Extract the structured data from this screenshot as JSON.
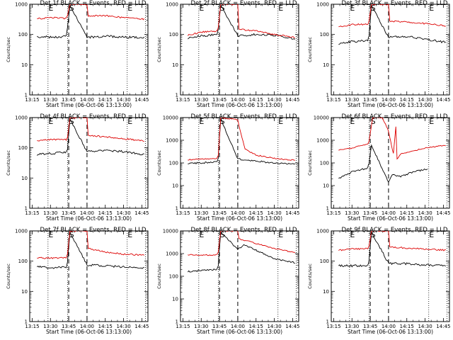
{
  "chart_data": {
    "type": "line",
    "x_ticks": [
      "13:15",
      "13:30",
      "13:45",
      "14:00",
      "14:15",
      "14:30",
      "14:45"
    ],
    "xlim": [
      "13:13",
      "14:50"
    ],
    "ylabel": "Counts/sec",
    "yscale": "log",
    "colors": {
      "events": "#000000",
      "lld": "#dd0000"
    },
    "marker_lines": {
      "dotted": [
        "13:28",
        "13:44",
        "14:33",
        "14:48"
      ],
      "dashed": [
        "13:45",
        "14:00"
      ]
    },
    "panels": [
      {
        "title": "Det 1f BLACK = Events, RED = LLD",
        "xlabel": "Start Time (06-Oct-06 13:13:00)",
        "ylim": [
          1,
          1000
        ],
        "y_ticks": [
          "1",
          "10",
          "100",
          "1000"
        ],
        "markers": [
          "E",
          "S",
          "E"
        ],
        "series": [
          {
            "name": "Events",
            "x": [
              "13:19",
              "13:30",
              "13:43",
              "13:44",
              "13:46",
              "14:00",
              "14:15",
              "14:30",
              "14:47"
            ],
            "values": [
              85,
              82,
              86,
              160,
              900,
              80,
              88,
              82,
              78
            ]
          },
          {
            "name": "LLD",
            "x": [
              "13:19",
              "13:30",
              "13:43",
              "13:44",
              "13:46",
              "14:00",
              "14:01",
              "14:15",
              "14:30",
              "14:47"
            ],
            "values": [
              330,
              360,
              340,
              420,
              1000,
              1000,
              420,
              420,
              360,
              320
            ]
          }
        ]
      },
      {
        "title": "Det 2f BLACK = Events, RED = LLD",
        "xlabel": "Start Time (06-Oct-06 13:13:00)",
        "ylim": [
          1,
          1000
        ],
        "y_ticks": [
          "1",
          "10",
          "100",
          "1000"
        ],
        "markers": [
          "E",
          "S",
          "E"
        ],
        "series": [
          {
            "name": "Events",
            "x": [
              "13:19",
              "13:30",
              "13:43",
              "13:44",
              "13:46",
              "14:00",
              "14:15",
              "14:30",
              "14:47"
            ],
            "values": [
              75,
              90,
              100,
              150,
              900,
              90,
              100,
              95,
              72
            ]
          },
          {
            "name": "LLD",
            "x": [
              "13:19",
              "13:30",
              "13:43",
              "13:44",
              "13:46",
              "14:00",
              "14:01",
              "14:15",
              "14:30",
              "14:47"
            ],
            "values": [
              95,
              120,
              130,
              170,
              1000,
              1000,
              150,
              130,
              100,
              80
            ]
          }
        ]
      },
      {
        "title": "Det 3f BLACK = Events, RED = LLD",
        "xlabel": "Start Time (06-Oct-06 13:13:00)",
        "ylim": [
          1,
          1000
        ],
        "y_ticks": [
          "1",
          "10",
          "100",
          "1000"
        ],
        "markers": [
          "E",
          "S",
          "E"
        ],
        "series": [
          {
            "name": "Events",
            "x": [
              "13:19",
              "13:30",
              "13:43",
              "13:44",
              "13:46",
              "14:00",
              "14:15",
              "14:30",
              "14:47"
            ],
            "values": [
              50,
              58,
              62,
              90,
              900,
              80,
              85,
              70,
              55
            ]
          },
          {
            "name": "LLD",
            "x": [
              "13:19",
              "13:30",
              "13:43",
              "13:44",
              "13:46",
              "14:00",
              "14:01",
              "14:15",
              "14:30",
              "14:47"
            ],
            "values": [
              180,
              210,
              220,
              280,
              1000,
              1000,
              280,
              260,
              230,
              190
            ]
          }
        ]
      },
      {
        "title": "Det 4f BLACK = Events, RED = LLD",
        "xlabel": "Start Time (06-Oct-06 13:13:00)",
        "ylim": [
          1,
          1000
        ],
        "y_ticks": [
          "1",
          "10",
          "100",
          "1000"
        ],
        "markers": [
          "E",
          "S",
          "E"
        ],
        "series": [
          {
            "name": "Events",
            "x": [
              "13:19",
              "13:30",
              "13:43",
              "13:44",
              "13:46",
              "14:00",
              "14:15",
              "14:30",
              "14:47"
            ],
            "values": [
              60,
              65,
              70,
              90,
              900,
              75,
              80,
              75,
              60
            ]
          },
          {
            "name": "LLD",
            "x": [
              "13:19",
              "13:30",
              "13:43",
              "13:44",
              "13:46",
              "14:00",
              "14:01",
              "14:15",
              "14:30",
              "14:47"
            ],
            "values": [
              170,
              190,
              185,
              220,
              1000,
              1000,
              260,
              230,
              200,
              170
            ]
          }
        ]
      },
      {
        "title": "Det 5f BLACK = Events, RED = LLD",
        "xlabel": "Start Time (06-Oct-06 13:13:00)",
        "ylim": [
          1,
          10000
        ],
        "y_ticks": [
          "1",
          "10",
          "100",
          "1000",
          "10000"
        ],
        "markers": [
          "E",
          "S",
          "E"
        ],
        "series": [
          {
            "name": "Events",
            "x": [
              "13:19",
              "13:30",
              "13:43",
              "13:44",
              "13:46",
              "14:00",
              "14:15",
              "14:30",
              "14:47"
            ],
            "values": [
              95,
              100,
              110,
              160,
              9000,
              150,
              120,
              100,
              90
            ]
          },
          {
            "name": "LLD",
            "x": [
              "13:19",
              "13:30",
              "13:43",
              "13:44",
              "13:46",
              "14:00",
              "14:01",
              "14:06",
              "14:15",
              "14:30",
              "14:47"
            ],
            "values": [
              140,
              150,
              160,
              220,
              10000,
              8000,
              4500,
              400,
              220,
              160,
              130
            ]
          }
        ]
      },
      {
        "title": "Det 6f BLACK = Events, RED = LLD",
        "xlabel": "Start Time (06-Oct-06 13:13:00)",
        "ylim": [
          1,
          10000
        ],
        "y_ticks": [
          "1",
          "10",
          "100",
          "1000",
          "10000"
        ],
        "markers": [
          "E",
          "S",
          "E"
        ],
        "series": [
          {
            "name": "Events",
            "x": [
              "13:19",
              "13:30",
              "13:43",
              "13:44",
              "13:46",
              "14:00",
              "14:03",
              "14:10",
              "14:20",
              "14:32"
            ],
            "values": [
              20,
              40,
              60,
              100,
              600,
              14,
              30,
              25,
              40,
              55
            ]
          },
          {
            "name": "LLD",
            "x": [
              "13:19",
              "13:30",
              "13:43",
              "13:44",
              "13:47",
              "13:55",
              "14:00",
              "14:04",
              "14:06",
              "14:07",
              "14:10",
              "14:30",
              "14:47"
            ],
            "values": [
              380,
              450,
              700,
              900,
              10000,
              10000,
              2500,
              250,
              4000,
              150,
              250,
              450,
              600
            ]
          }
        ]
      },
      {
        "title": "Det 7f BLACK = Events, RED = LLD",
        "xlabel": "Start Time (06-Oct-06 13:13:00)",
        "ylim": [
          1,
          1000
        ],
        "y_ticks": [
          "1",
          "10",
          "100",
          "1000"
        ],
        "markers": [
          "E",
          "S",
          "E"
        ],
        "series": [
          {
            "name": "Events",
            "x": [
              "13:19",
              "13:30",
              "13:43",
              "13:44",
              "13:46",
              "14:00",
              "14:15",
              "14:30",
              "14:47"
            ],
            "values": [
              65,
              60,
              62,
              90,
              900,
              75,
              70,
              65,
              60
            ]
          },
          {
            "name": "LLD",
            "x": [
              "13:19",
              "13:30",
              "13:43",
              "13:44",
              "13:46",
              "14:00",
              "14:01",
              "14:15",
              "14:30",
              "14:47"
            ],
            "values": [
              130,
              125,
              130,
              180,
              1000,
              1000,
              260,
              200,
              170,
              160
            ]
          }
        ]
      },
      {
        "title": "Det 8f BLACK = Events, RED = LLD",
        "xlabel": "Start Time (06-Oct-06 13:13:00)",
        "ylim": [
          1,
          10000
        ],
        "y_ticks": [
          "1",
          "10",
          "100",
          "1000",
          "10000"
        ],
        "markers": [
          "E",
          "S",
          "E"
        ],
        "series": [
          {
            "name": "Events",
            "x": [
              "13:19",
              "13:30",
              "13:43",
              "13:44",
              "13:46",
              "14:00",
              "14:05",
              "14:15",
              "14:30",
              "14:47"
            ],
            "values": [
              160,
              180,
              200,
              300,
              9000,
              1500,
              2500,
              1400,
              600,
              400
            ]
          },
          {
            "name": "LLD",
            "x": [
              "13:19",
              "13:30",
              "13:43",
              "13:44",
              "13:46",
              "14:00",
              "14:01",
              "14:15",
              "14:30",
              "14:47"
            ],
            "values": [
              900,
              850,
              900,
              1200,
              10000,
              10000,
              4500,
              2800,
              1700,
              1100
            ]
          }
        ]
      },
      {
        "title": "Det 9f BLACK = Events, RED = LLD",
        "xlabel": "Start Time (06-Oct-06 13:13:00)",
        "ylim": [
          1,
          1000
        ],
        "y_ticks": [
          "1",
          "10",
          "100",
          "1000"
        ],
        "markers": [
          "E",
          "S",
          "E"
        ],
        "series": [
          {
            "name": "Events",
            "x": [
              "13:19",
              "13:30",
              "13:43",
              "13:44",
              "13:46",
              "14:00",
              "14:15",
              "14:30",
              "14:47"
            ],
            "values": [
              70,
              70,
              72,
              100,
              900,
              85,
              82,
              75,
              70
            ]
          },
          {
            "name": "LLD",
            "x": [
              "13:19",
              "13:30",
              "13:43",
              "13:44",
              "13:46",
              "14:00",
              "14:01",
              "14:15",
              "14:30",
              "14:47"
            ],
            "values": [
              230,
              250,
              260,
              320,
              1000,
              1000,
              300,
              270,
              250,
              230
            ]
          }
        ]
      }
    ]
  }
}
